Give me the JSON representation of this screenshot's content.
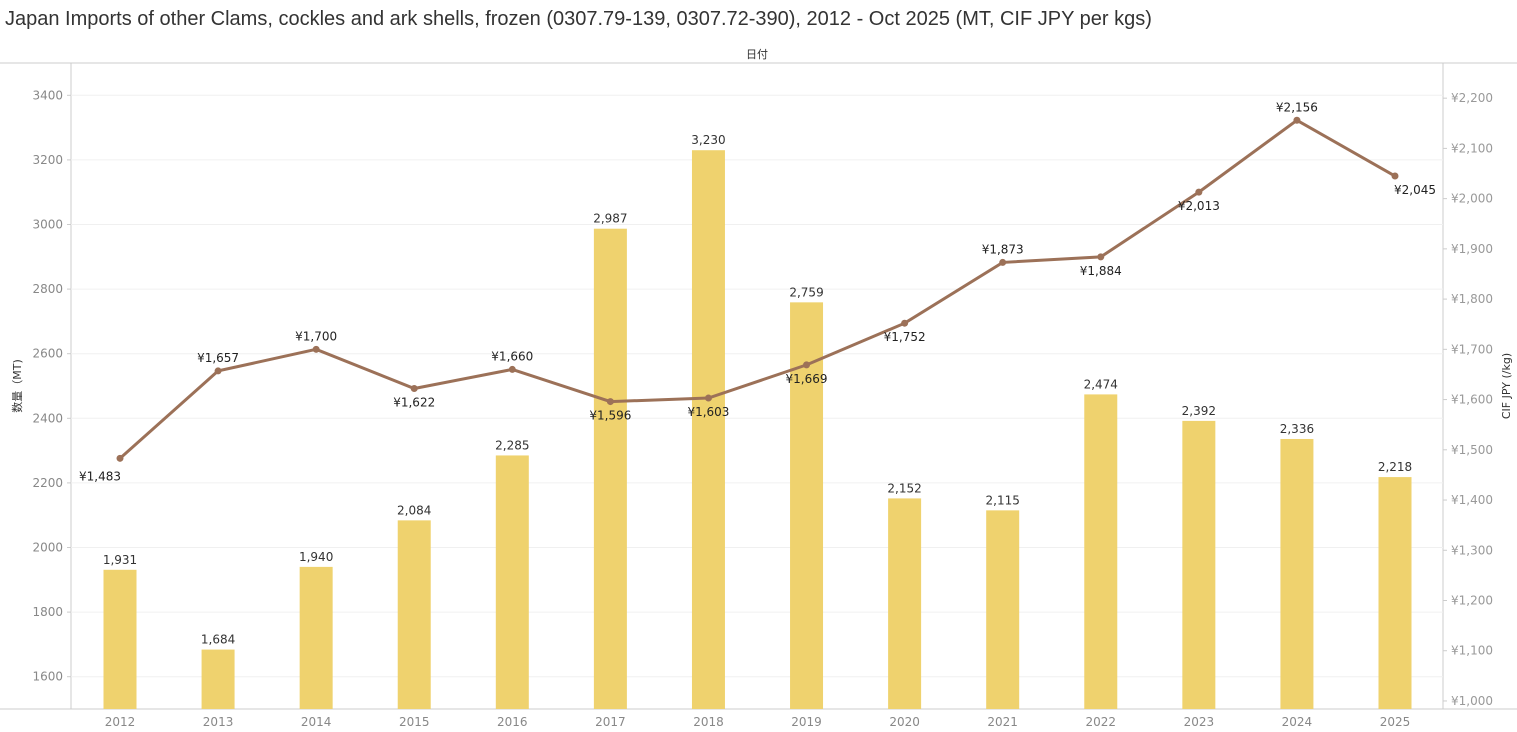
{
  "title": "Japan Imports of other Clams, cockles and ark shells, frozen (0307.79-139, 0307.72-390), 2012 - Oct 2025 (MT, CIF JPY per kgs)",
  "x_header": "日付",
  "chart_data": {
    "type": "bar+line",
    "categories": [
      "2012",
      "2013",
      "2014",
      "2015",
      "2016",
      "2017",
      "2018",
      "2019",
      "2020",
      "2021",
      "2022",
      "2023",
      "2024",
      "2025"
    ],
    "series": [
      {
        "name": "数量（MT)",
        "type": "bar",
        "axis": "left",
        "color": "#EFD26E",
        "values": [
          1931,
          1684,
          1940,
          2084,
          2285,
          2987,
          3230,
          2759,
          2152,
          2115,
          2474,
          2392,
          2336,
          2218
        ],
        "labels": [
          "1,931",
          "1,684",
          "1,940",
          "2,084",
          "2,285",
          "2,987",
          "3,230",
          "2,759",
          "2,152",
          "2,115",
          "2,474",
          "2,392",
          "2,336",
          "2,218"
        ]
      },
      {
        "name": "CIF JPY (/kg)",
        "type": "line",
        "axis": "right",
        "color": "#9C7158",
        "values": [
          1483,
          1657,
          1700,
          1622,
          1660,
          1596,
          1603,
          1669,
          1752,
          1873,
          1884,
          2013,
          2156,
          2045
        ],
        "labels": [
          "¥1,483",
          "¥1,657",
          "¥1,700",
          "¥1,622",
          "¥1,660",
          "¥1,596",
          "¥1,603",
          "¥1,669",
          "¥1,752",
          "¥1,873",
          "¥1,884",
          "¥2,013",
          "¥2,156",
          "¥2,045"
        ]
      }
    ],
    "left_axis": {
      "label": "数量（MT)",
      "range": [
        1500,
        3500
      ],
      "ticks": [
        "1600",
        "1800",
        "2000",
        "2200",
        "2400",
        "2600",
        "2800",
        "3000",
        "3200",
        "3400"
      ]
    },
    "right_axis": {
      "label": "CIF JPY (/kg)",
      "range": [
        984,
        2270
      ],
      "ticks": [
        "¥1,000",
        "¥1,100",
        "¥1,200",
        "¥1,300",
        "¥1,400",
        "¥1,500",
        "¥1,600",
        "¥1,700",
        "¥1,800",
        "¥1,900",
        "¥2,000",
        "¥2,100",
        "¥2,200"
      ]
    },
    "grid": true
  }
}
